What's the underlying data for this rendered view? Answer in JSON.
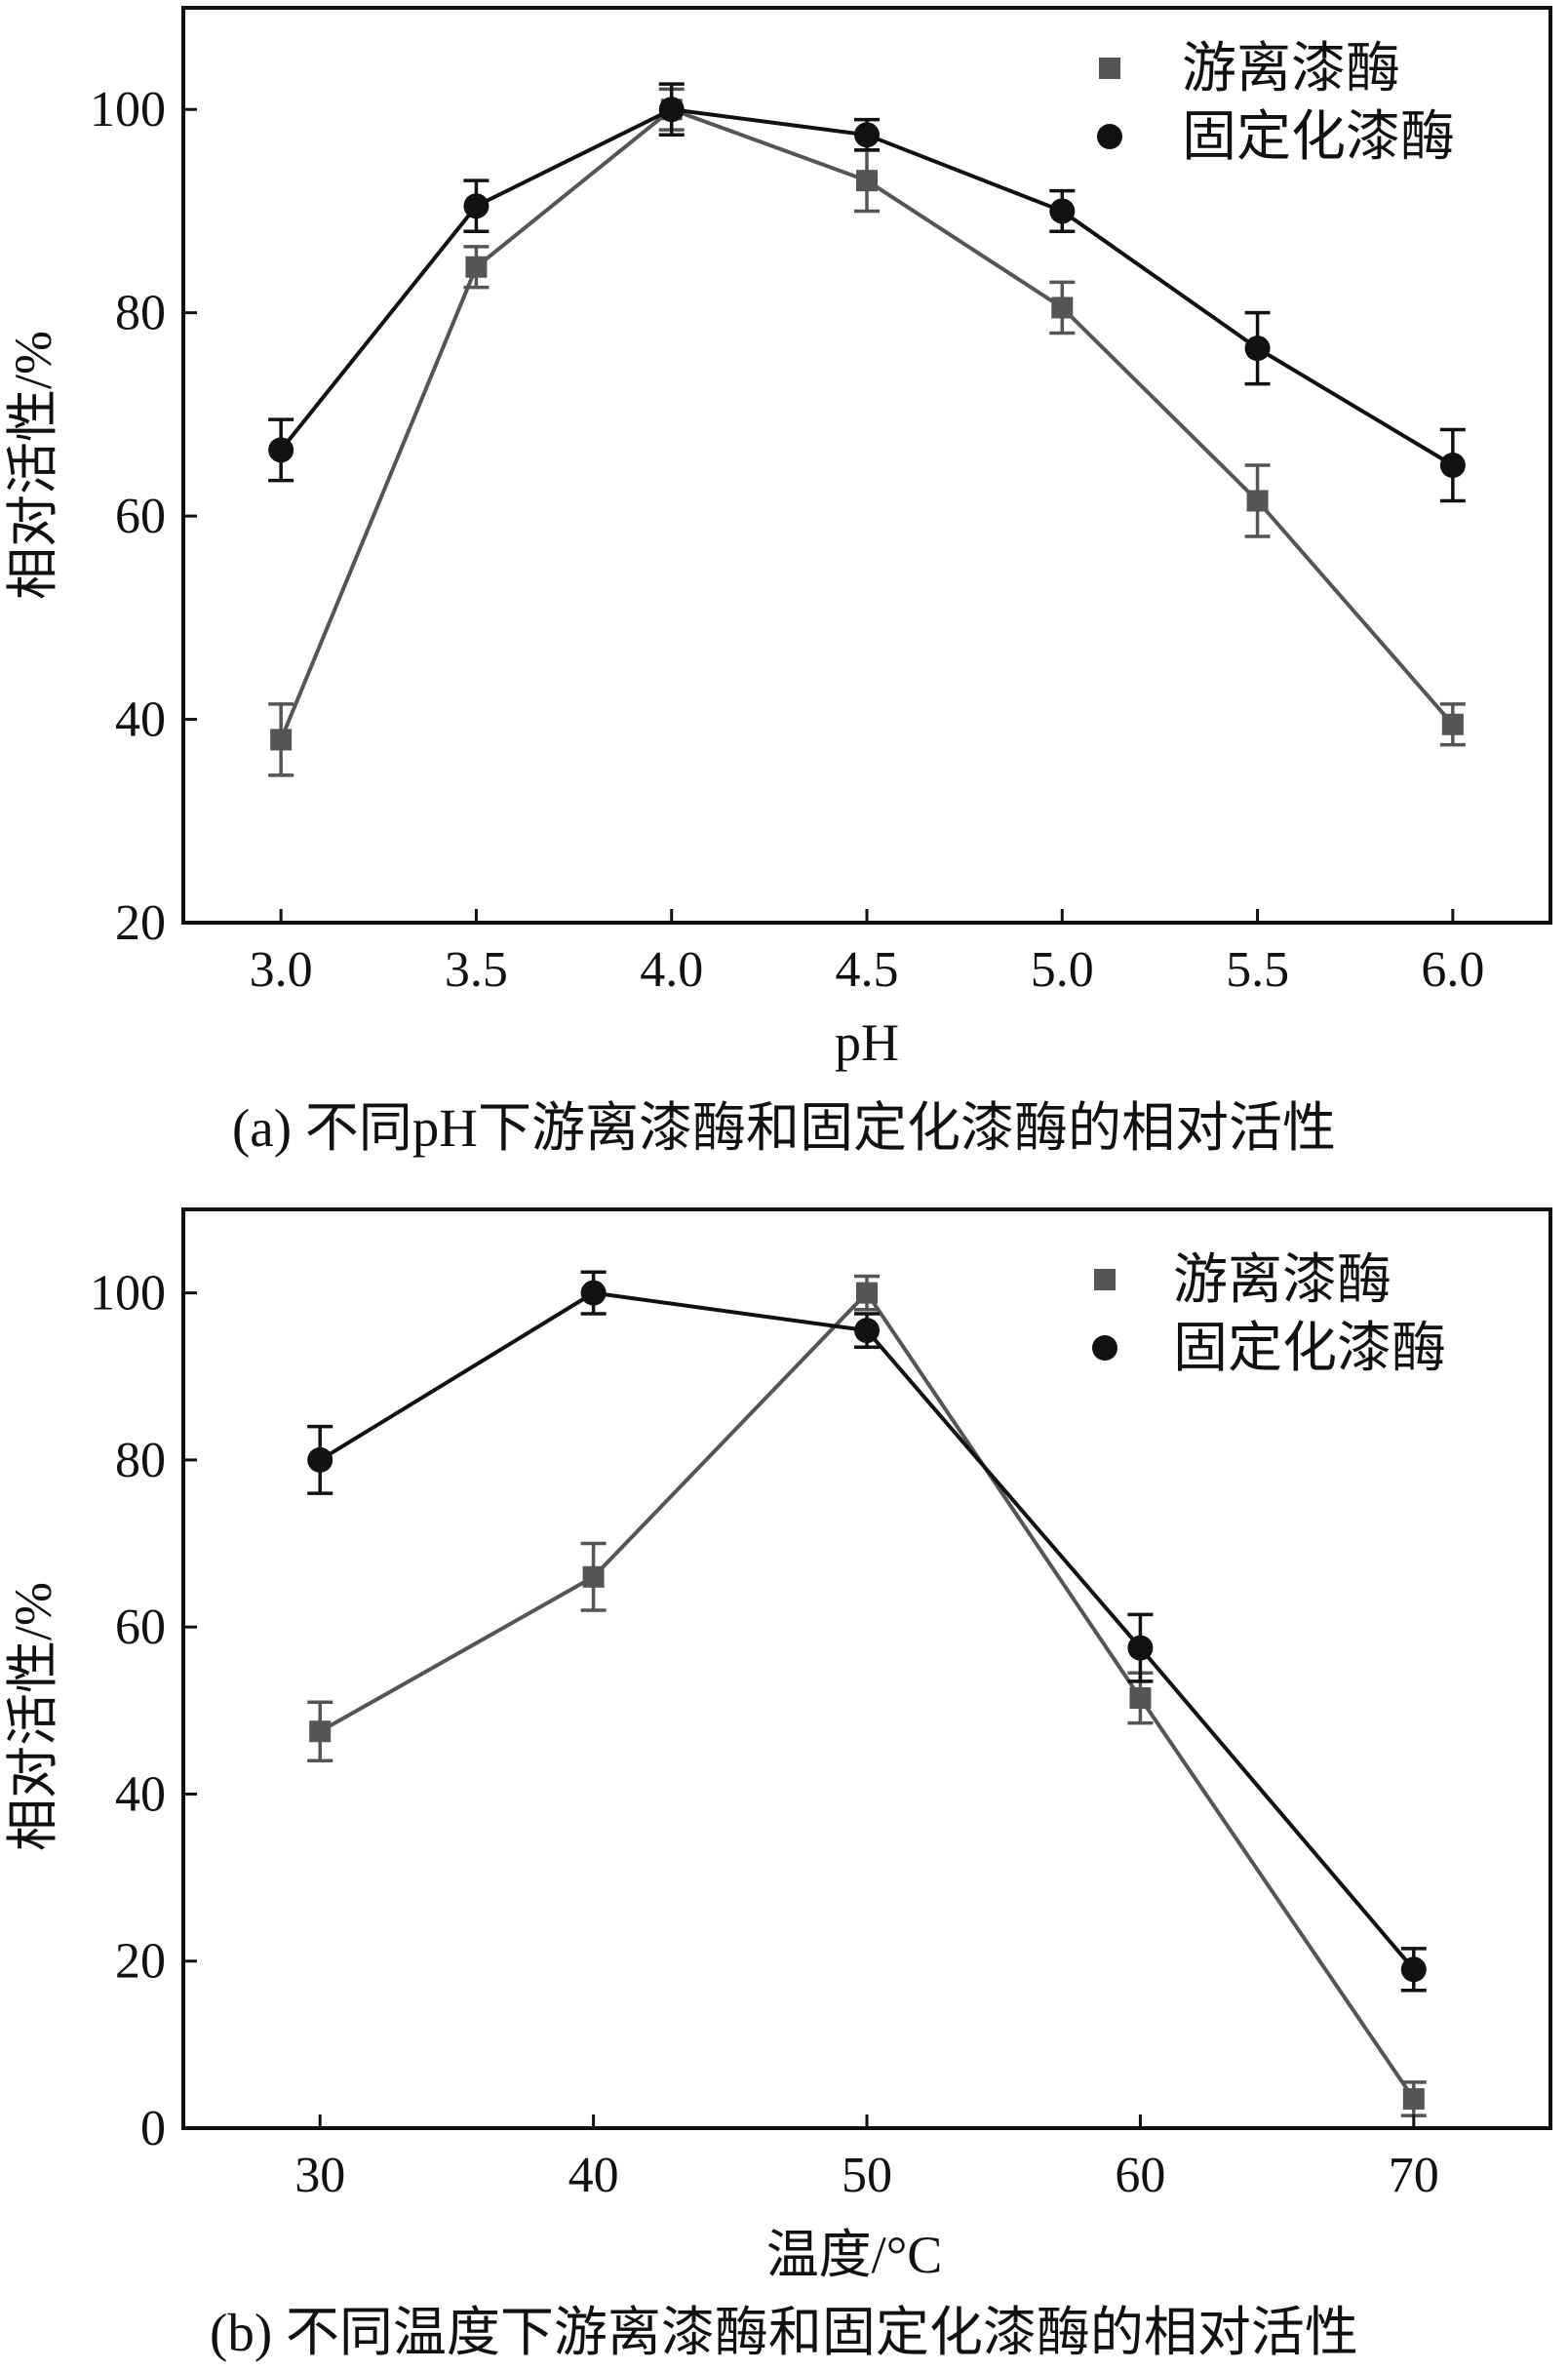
{
  "colors": {
    "free": "#555555",
    "immobilized": "#111111",
    "axis": "#111111"
  },
  "chart_data": [
    {
      "type": "line",
      "panel": "a",
      "caption": "(a) 不同pH下游离漆酶和固定化漆酶的相对活性",
      "xlabel": "pH",
      "ylabel": "相对活性/%",
      "x": [
        3.0,
        3.5,
        4.0,
        4.5,
        5.0,
        5.5,
        6.0
      ],
      "x_tick_labels": [
        "3.0",
        "3.5",
        "4.0",
        "4.5",
        "5.0",
        "5.5",
        "6.0"
      ],
      "xlim": [
        2.75,
        6.25
      ],
      "ylim": [
        20,
        110
      ],
      "y_ticks": [
        20,
        40,
        60,
        80,
        100
      ],
      "grid": false,
      "legend_position": "top-right",
      "series": [
        {
          "name": "游离漆酶",
          "marker": "square",
          "values": [
            38,
            84.5,
            100,
            93,
            80.5,
            61.5,
            39.5
          ],
          "errors": [
            3.5,
            2,
            2,
            3,
            2.5,
            3.5,
            2
          ]
        },
        {
          "name": "固定化漆酶",
          "marker": "circle",
          "values": [
            66.5,
            90.5,
            100,
            97.5,
            90,
            76.5,
            65
          ],
          "errors": [
            3,
            2.5,
            2.5,
            1.5,
            2,
            3.5,
            3.5
          ]
        }
      ]
    },
    {
      "type": "line",
      "panel": "b",
      "caption": "(b) 不同温度下游离漆酶和固定化漆酶的相对活性",
      "xlabel": "温度/°C",
      "ylabel": "相对活性/%",
      "x": [
        30,
        40,
        50,
        60,
        70
      ],
      "x_tick_labels": [
        "30",
        "40",
        "50",
        "60",
        "70"
      ],
      "xlim": [
        25,
        75
      ],
      "ylim": [
        0,
        110
      ],
      "y_ticks": [
        0,
        20,
        40,
        60,
        80,
        100
      ],
      "grid": false,
      "legend_position": "top-right",
      "series": [
        {
          "name": "游离漆酶",
          "marker": "square",
          "values": [
            47.5,
            66,
            100,
            51.5,
            3.5
          ],
          "errors": [
            3.5,
            4,
            2,
            3,
            2
          ]
        },
        {
          "name": "固定化漆酶",
          "marker": "circle",
          "values": [
            80,
            100,
            95.5,
            57.5,
            19
          ],
          "errors": [
            4,
            2.5,
            2,
            4,
            2.5
          ]
        }
      ]
    }
  ]
}
